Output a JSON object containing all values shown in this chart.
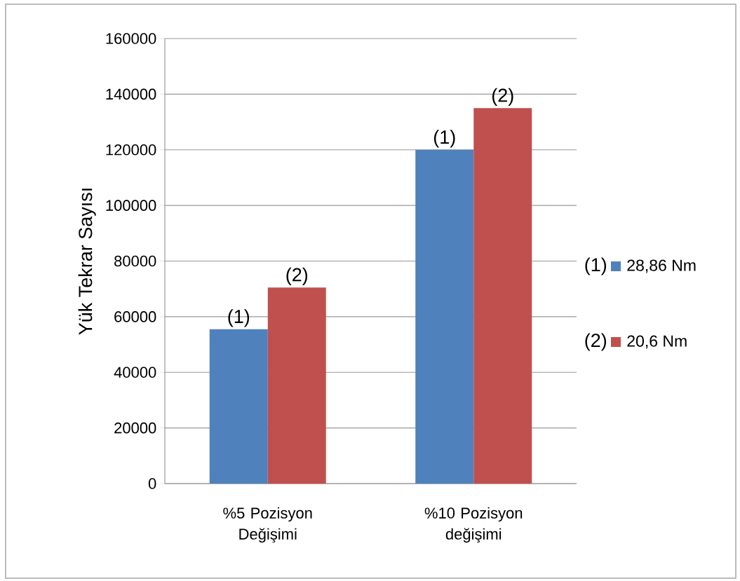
{
  "chart_data": {
    "type": "bar",
    "ylabel": "Yük Tekrar Sayısı",
    "categories": [
      "%5 Pozisyon Değişimi",
      "%10 Pozisyon değişimi"
    ],
    "series": [
      {
        "name": "28,86 Nm",
        "color": "#4f81bd",
        "values": [
          55500,
          120000
        ]
      },
      {
        "name": "20,6 Nm",
        "color": "#c0504d",
        "values": [
          70500,
          135000
        ]
      }
    ],
    "ylim": [
      0,
      160000
    ],
    "yticks": [
      0,
      20000,
      40000,
      60000,
      80000,
      100000,
      120000,
      140000,
      160000
    ],
    "grid": "y",
    "legend": "right",
    "annotations": [
      {
        "text": "(1)",
        "x": "%5 Pozisyon Değişimi",
        "y": 55500
      },
      {
        "text": "(2)",
        "x": "%5 Pozisyon Değişimi",
        "y": 70500
      },
      {
        "text": "(1)",
        "x": "%10 Pozisyon değişimi",
        "y": 120000
      },
      {
        "text": "(2)",
        "x": "%10 Pozisyon değişimi",
        "y": 135000
      },
      "(1)",
      "(2)"
    ]
  }
}
